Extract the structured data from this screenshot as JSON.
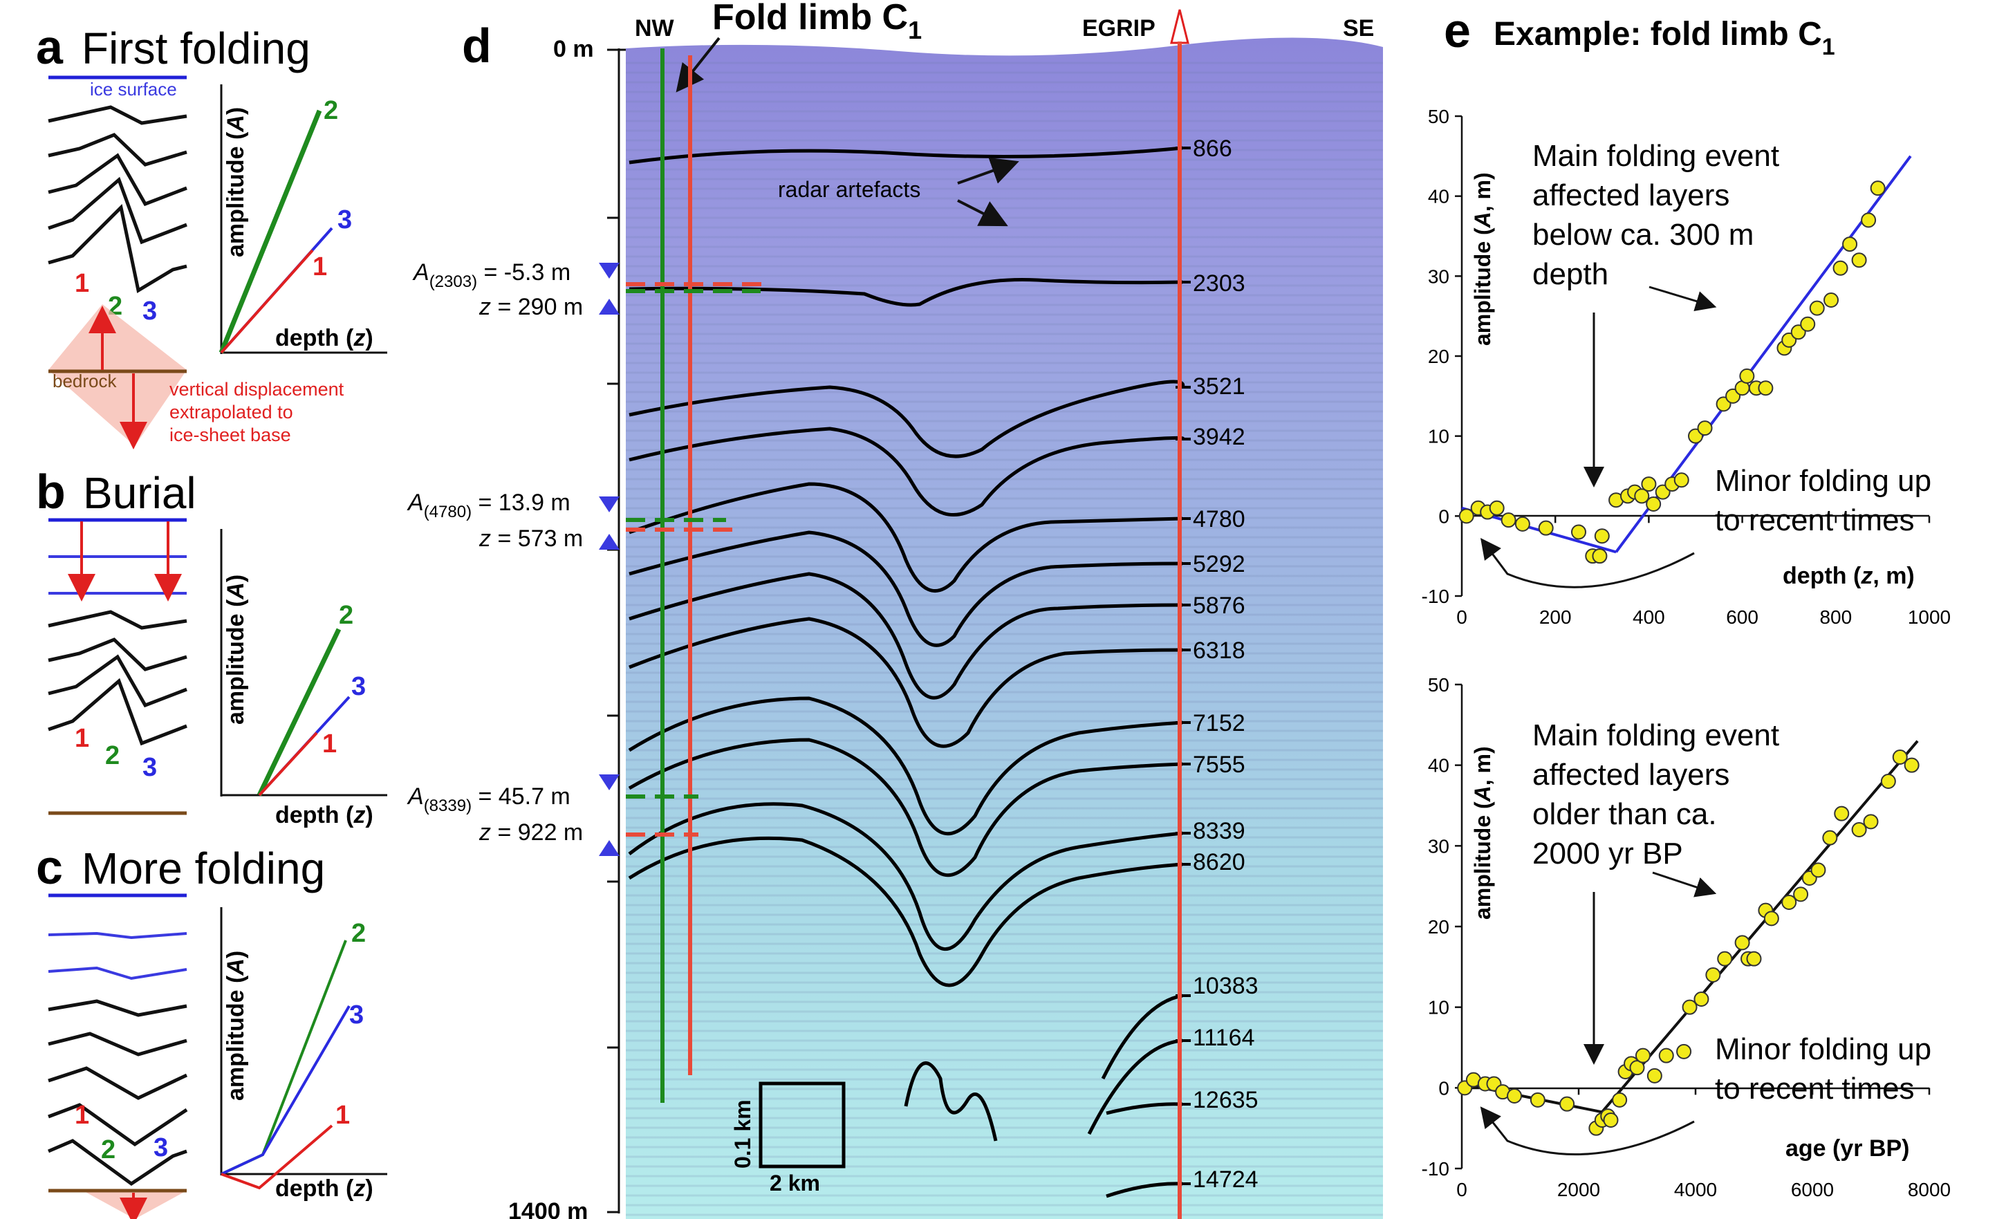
{
  "panel_a": {
    "letter": "a",
    "title": "First folding",
    "ice_surface": "ice surface",
    "bedrock": "bedrock",
    "displacement": [
      "vertical displacement",
      "extrapolated to",
      "ice-sheet base"
    ],
    "ylabel": "amplitude (",
    "ylabel_sym": "A",
    "ylabel_end": ")",
    "xlabel": "depth (",
    "xlabel_sym": "z",
    "xlabel_end": ")",
    "line_labels": [
      "1",
      "2",
      "3"
    ],
    "colors": {
      "1": "#e02020",
      "2": "#1e8a1e",
      "3": "#2a2ae0"
    }
  },
  "panel_b": {
    "letter": "b",
    "title": "Burial",
    "ylabel": "amplitude (",
    "ylabel_sym": "A",
    "ylabel_end": ")",
    "xlabel": "depth (",
    "xlabel_sym": "z",
    "xlabel_end": ")",
    "line_labels": [
      "1",
      "2",
      "3"
    ]
  },
  "panel_c": {
    "letter": "c",
    "title": "More folding",
    "ylabel": "amplitude (",
    "ylabel_sym": "A",
    "ylabel_end": ")",
    "xlabel": "depth (",
    "xlabel_sym": "z",
    "xlabel_end": ")",
    "line_labels": [
      "1",
      "2",
      "3"
    ]
  },
  "panel_d": {
    "letter": "d",
    "title": "Fold limb C",
    "title_sub": "1",
    "nw": "NW",
    "se": "SE",
    "egrip": "EGRIP",
    "top_depth": "0 m",
    "bottom_depth": "1400 m",
    "radar_artefacts": "radar artefacts",
    "layers": [
      "866",
      "2303",
      "3521",
      "3942",
      "4780",
      "5292",
      "5876",
      "6318",
      "7152",
      "7555",
      "8339",
      "8620",
      "10383",
      "11164",
      "12635",
      "14724"
    ],
    "measurements": [
      {
        "a_sym": "A",
        "a_sub": "(2303)",
        "a_val": " = -5.3 m",
        "z_sym": "z",
        "z_val": " = 290 m"
      },
      {
        "a_sym": "A",
        "a_sub": "(4780)",
        "a_val": " = 13.9 m",
        "z_sym": "z",
        "z_val": " = 573 m"
      },
      {
        "a_sym": "A",
        "a_sub": "(8339)",
        "a_val": " = 45.7 m",
        "z_sym": "z",
        "z_val": " = 922 m"
      }
    ],
    "scale_v": "0.1 km",
    "scale_h": "2 km"
  },
  "panel_e": {
    "letter": "e",
    "title": "Example: fold limb C",
    "title_sub": "1",
    "top": {
      "ylabel": "amplitude (A, m)",
      "xlabel_pre": "depth (",
      "xlabel_sym": "z",
      "xlabel_post": ", m)",
      "annotation_main": [
        "Main folding event",
        "affected layers",
        "below ca. 300 m",
        "depth"
      ],
      "annotation_minor": [
        "Minor folding up",
        "to recent times"
      ],
      "x_ticks": [
        "0",
        "200",
        "400",
        "600",
        "800",
        "1000"
      ],
      "y_ticks": [
        "50",
        "40",
        "30",
        "20",
        "10",
        "0",
        "-10"
      ]
    },
    "bottom": {
      "ylabel": "amplitude (A, m)",
      "xlabel": "age (yr BP)",
      "annotation_main": [
        "Main folding event",
        "affected layers",
        "older  than ca.",
        "2000 yr BP"
      ],
      "annotation_minor": [
        "Minor folding up",
        "to recent times"
      ],
      "x_ticks": [
        "0",
        "2000",
        "4000",
        "6000",
        "8000"
      ],
      "y_ticks": [
        "50",
        "40",
        "30",
        "20",
        "10",
        "0",
        "-10"
      ]
    }
  },
  "chart_data": [
    {
      "type": "scatter",
      "xlabel": "depth (z, m)",
      "ylabel": "amplitude (A, m)",
      "xlim": [
        0,
        1000
      ],
      "ylim": [
        -10,
        50
      ],
      "series": [
        {
          "x": [
            10,
            35,
            55,
            75,
            100,
            130,
            180,
            250,
            280,
            295,
            300,
            330,
            355,
            370,
            385,
            400,
            410,
            430,
            450,
            470,
            500,
            520,
            560,
            580,
            600,
            610,
            630,
            650,
            690,
            700,
            720,
            740,
            760,
            790,
            810,
            830,
            850,
            870,
            890
          ],
          "y": [
            0,
            1,
            0.5,
            1,
            -0.5,
            -1,
            -1.5,
            -2,
            -5,
            -5,
            -2.5,
            2,
            2.5,
            3,
            2.5,
            4,
            1.5,
            3,
            4,
            4.5,
            10,
            11,
            14,
            15,
            16,
            17.5,
            16,
            16,
            21,
            22,
            23,
            24,
            26,
            27,
            31,
            34,
            32,
            37,
            41
          ]
        }
      ],
      "fit_lines": [
        {
          "x": [
            0,
            330
          ],
          "y": [
            1,
            -4.5
          ]
        },
        {
          "x": [
            330,
            960
          ],
          "y": [
            -4.5,
            45
          ]
        }
      ]
    },
    {
      "type": "scatter",
      "xlabel": "age (yr BP)",
      "ylabel": "amplitude (A, m)",
      "xlim": [
        0,
        8000
      ],
      "ylim": [
        -10,
        50
      ],
      "series": [
        {
          "x": [
            50,
            200,
            400,
            550,
            700,
            900,
            1300,
            1800,
            2300,
            2400,
            2500,
            2550,
            2700,
            2800,
            2900,
            3000,
            3100,
            3300,
            3500,
            3800,
            3900,
            4100,
            4300,
            4500,
            4800,
            4900,
            5000,
            5200,
            5300,
            5600,
            5800,
            5950,
            6100,
            6300,
            6500,
            6800,
            7000,
            7300,
            7500,
            7700
          ],
          "y": [
            0,
            1,
            0.5,
            0.5,
            -0.5,
            -1,
            -1.5,
            -2,
            -5,
            -4,
            -3.5,
            -4,
            -1.5,
            2,
            3,
            2.5,
            4,
            1.5,
            4,
            4.5,
            10,
            11,
            14,
            16,
            18,
            16,
            16,
            22,
            21,
            23,
            24,
            26,
            27,
            31,
            34,
            32,
            33,
            38,
            41,
            40
          ]
        }
      ],
      "fit_lines": [
        {
          "x": [
            0,
            2400,
            7800
          ],
          "y": [
            0.5,
            -3,
            43
          ]
        }
      ]
    }
  ]
}
